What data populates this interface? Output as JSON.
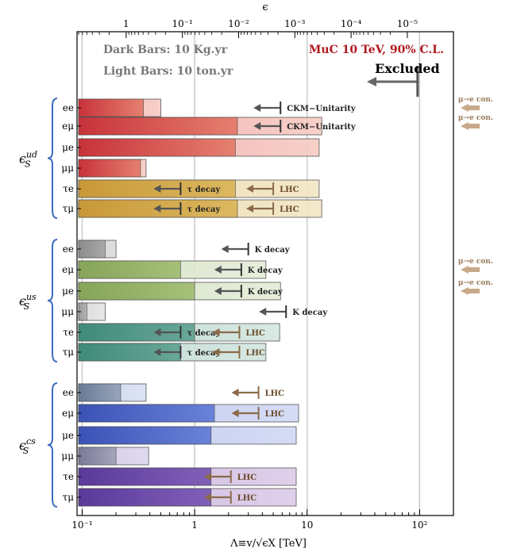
{
  "chart_data": {
    "type": "bar",
    "orientation": "horizontal",
    "x_scale": "log",
    "xlim": [
      0.09,
      200
    ],
    "xlabel": "Λ≡v/√ϵX [TeV]",
    "x_ticks": [
      "10⁻¹",
      "1",
      "10",
      "10²"
    ],
    "x_tick_values": [
      0.1,
      1,
      10,
      100
    ],
    "top_axis_label": "ϵ",
    "top_ticks": [
      "1",
      "10⁻¹",
      "10⁻²",
      "10⁻³",
      "10⁻⁴",
      "10⁻⁵"
    ],
    "top_tick_lambda": [
      0.246,
      0.778,
      2.46,
      7.78,
      24.6,
      77.8
    ],
    "vertical_gridlines_at": [
      0.1,
      1,
      10,
      100
    ],
    "legend": {
      "dark": "Dark Bars: 10 Kg.yr",
      "light": "Light Bars: 10 ton.yr"
    },
    "title": "MuC 10 TeV, 90% C.L.",
    "excluded_label": "Excluded",
    "excluded_marker_at": 96,
    "groups": [
      {
        "label_base": "ϵ",
        "label_sub": "S",
        "label_sup": "ud",
        "colors": {
          "dark_start": "#c8323a",
          "dark_end": "#e58070",
          "light_start": "#f0a4a8",
          "light_end": "#f6cbc2"
        },
        "rows": [
          {
            "name": "ee",
            "dark": 0.35,
            "light": 0.5
          },
          {
            "name": "eμ",
            "dark": 2.4,
            "light": 13.5
          },
          {
            "name": "μe",
            "dark": 2.3,
            "light": 12.8
          },
          {
            "name": "μμ",
            "dark": 0.33,
            "light": 0.37
          }
        ],
        "rows_alt": [
          {
            "name": "τe",
            "dark": 2.3,
            "light": 12.8
          },
          {
            "name": "τμ",
            "dark": 2.4,
            "light": 13.5
          }
        ],
        "alt_colors": {
          "dark_start": "#c89838",
          "dark_end": "#dcb860",
          "light_start": "#e8d8a8",
          "light_end": "#f2e6c4"
        }
      },
      {
        "label_base": "ϵ",
        "label_sub": "S",
        "label_sup": "us",
        "rows": [
          {
            "name": "ee",
            "dark": 0.16,
            "light": 0.2,
            "c": [
              "#8c8c8c",
              "#a8a8a8",
              "#cccccc",
              "#dcdcdc"
            ]
          },
          {
            "name": "eμ",
            "dark": 0.75,
            "light": 4.3,
            "c": [
              "#86a45a",
              "#a6c07a",
              "#d2e0c0",
              "#e4ecd8"
            ]
          },
          {
            "name": "μe",
            "dark": 1.0,
            "light": 5.8,
            "c": [
              "#86a45a",
              "#a6c07a",
              "#d2e0c0",
              "#e4ecd8"
            ]
          },
          {
            "name": "μμ",
            "dark": 0.11,
            "light": 0.16,
            "c": [
              "#9a9a9a",
              "#b4b4b4",
              "#d6d6d6",
              "#e6e6e6"
            ]
          },
          {
            "name": "τe",
            "dark": 1.0,
            "light": 5.7,
            "c": [
              "#3f8a7a",
              "#6aa898",
              "#b8d6cc",
              "#d4e6e0"
            ]
          },
          {
            "name": "τμ",
            "dark": 0.75,
            "light": 4.3,
            "c": [
              "#3f8a7a",
              "#6aa898",
              "#b8d6cc",
              "#d4e6e0"
            ]
          }
        ]
      },
      {
        "label_base": "ϵ",
        "label_sub": "S",
        "label_sup": "cs",
        "rows": [
          {
            "name": "ee",
            "dark": 0.22,
            "light": 0.37,
            "c": [
              "#6a7a96",
              "#98a6bc",
              "#c4d0e8",
              "#d8e0f2"
            ]
          },
          {
            "name": "eμ",
            "dark": 1.5,
            "light": 8.4,
            "c": [
              "#3b52b6",
              "#6a82d8",
              "#b8c4ea",
              "#d0d8f4"
            ]
          },
          {
            "name": "μe",
            "dark": 1.4,
            "light": 8.0,
            "c": [
              "#3b52b6",
              "#6a82d8",
              "#b8c4ea",
              "#d0d8f4"
            ]
          },
          {
            "name": "μμ",
            "dark": 0.2,
            "light": 0.39,
            "c": [
              "#7a7a96",
              "#a4a4bc",
              "#cdc4e4",
              "#dcd6ee"
            ]
          },
          {
            "name": "τe",
            "dark": 1.4,
            "light": 8.0,
            "c": [
              "#5a3a9a",
              "#8060b8",
              "#c8b0dc",
              "#dccbe8"
            ]
          },
          {
            "name": "τμ",
            "dark": 1.4,
            "light": 8.0,
            "c": [
              "#5a3a9a",
              "#8060b8",
              "#c8b0dc",
              "#dccbe8"
            ]
          }
        ]
      }
    ],
    "annotations": [
      {
        "text": "CKM−Unitarity",
        "row": [
          0,
          0
        ],
        "limit": 5.8,
        "color": "#555555",
        "lcolor": "#222222"
      },
      {
        "text": "CKM−Unitarity",
        "row": [
          0,
          1
        ],
        "limit": 5.8,
        "color": "#555555",
        "lcolor": "#222222"
      },
      {
        "text": "τ decay",
        "row": [
          0,
          4
        ],
        "limit": 0.75,
        "color": "#333333",
        "lcolor": "#222222"
      },
      {
        "text": "LHC",
        "row": [
          0,
          4
        ],
        "limit": 5.0,
        "color": "#9a7a5a",
        "lcolor": "#6a4a2a"
      },
      {
        "text": "τ decay",
        "row": [
          0,
          5
        ],
        "limit": 0.75,
        "color": "#333333",
        "lcolor": "#222222"
      },
      {
        "text": "LHC",
        "row": [
          0,
          5
        ],
        "limit": 5.0,
        "color": "#9a7a5a",
        "lcolor": "#6a4a2a"
      },
      {
        "text": "K decay",
        "row": [
          1,
          0
        ],
        "limit": 3.0,
        "color": "#555555",
        "lcolor": "#222222"
      },
      {
        "text": "K decay",
        "row": [
          1,
          1
        ],
        "limit": 2.6,
        "color": "#555555",
        "lcolor": "#222222"
      },
      {
        "text": "K decay",
        "row": [
          1,
          2
        ],
        "limit": 2.6,
        "color": "#555555",
        "lcolor": "#222222"
      },
      {
        "text": "K decay",
        "row": [
          1,
          3
        ],
        "limit": 6.5,
        "color": "#555555",
        "lcolor": "#222222"
      },
      {
        "text": "τ decay",
        "row": [
          1,
          4
        ],
        "limit": 0.75,
        "color": "#333333",
        "lcolor": "#222222"
      },
      {
        "text": "LHC",
        "row": [
          1,
          4
        ],
        "limit": 2.5,
        "color": "#9a7a5a",
        "lcolor": "#6a4a2a"
      },
      {
        "text": "τ decay",
        "row": [
          1,
          5
        ],
        "limit": 0.75,
        "color": "#333333",
        "lcolor": "#222222"
      },
      {
        "text": "LHC",
        "row": [
          1,
          5
        ],
        "limit": 2.5,
        "color": "#9a7a5a",
        "lcolor": "#6a4a2a"
      },
      {
        "text": "LHC",
        "row": [
          2,
          0
        ],
        "limit": 3.7,
        "color": "#9a7a5a",
        "lcolor": "#6a4a2a"
      },
      {
        "text": "LHC",
        "row": [
          2,
          1
        ],
        "limit": 3.7,
        "color": "#9a7a5a",
        "lcolor": "#6a4a2a"
      },
      {
        "text": "LHC",
        "row": [
          2,
          4
        ],
        "limit": 2.1,
        "color": "#9a7a5a",
        "lcolor": "#6a4a2a"
      },
      {
        "text": "LHC",
        "row": [
          2,
          5
        ],
        "limit": 2.1,
        "color": "#9a7a5a",
        "lcolor": "#6a4a2a"
      }
    ],
    "side_notes": [
      {
        "text": "μ→e con.",
        "group": 0,
        "row": 0
      },
      {
        "text": "μ→e con.",
        "group": 0,
        "row": 1
      },
      {
        "text": "μ→e con.",
        "group": 1,
        "row": 1
      },
      {
        "text": "μ→e con.",
        "group": 1,
        "row": 2
      }
    ],
    "grid": true
  }
}
